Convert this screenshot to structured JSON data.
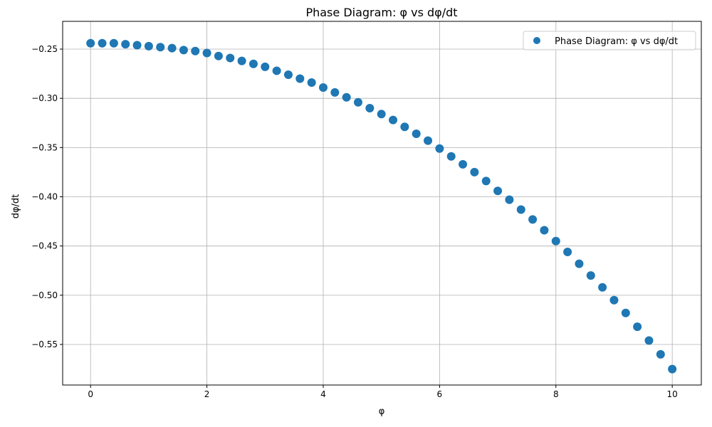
{
  "chart_data": {
    "type": "scatter",
    "title": "Phase Diagram: φ vs dφ/dt",
    "x_label": "φ",
    "y_label": "dφ/dt",
    "grid": true,
    "legend_position": "upper right",
    "xlim": [
      -0.48,
      10.5
    ],
    "ylim": [
      -0.5912,
      -0.2218
    ],
    "xticks": [
      0,
      2,
      4,
      6,
      8,
      10
    ],
    "yticks": [
      {
        "value": -0.25,
        "label": "−0.25"
      },
      {
        "value": -0.3,
        "label": "−0.30"
      },
      {
        "value": -0.35,
        "label": "−0.35"
      },
      {
        "value": -0.4,
        "label": "−0.40"
      },
      {
        "value": -0.45,
        "label": "−0.45"
      },
      {
        "value": -0.5,
        "label": "−0.50"
      },
      {
        "value": -0.55,
        "label": "−0.55"
      }
    ],
    "series": [
      {
        "name": "Phase Diagram: φ vs dφ/dt",
        "color": "#1f77b4",
        "x": [
          0,
          0.2,
          0.4,
          0.6,
          0.8,
          1.0,
          1.2,
          1.4,
          1.6,
          1.8,
          2.0,
          2.2,
          2.4,
          2.6,
          2.8,
          3.0,
          3.2,
          3.4,
          3.6,
          3.8,
          4.0,
          4.2,
          4.4,
          4.6,
          4.8,
          5.0,
          5.2,
          5.4,
          5.6,
          5.8,
          6.0,
          6.2,
          6.4,
          6.6,
          6.8,
          7.0,
          7.2,
          7.4,
          7.6,
          7.8,
          8.0,
          8.2,
          8.4,
          8.6,
          8.8,
          9.0,
          9.2,
          9.4,
          9.6,
          9.8,
          10
        ],
        "values": [
          -0.244,
          -0.244,
          -0.244,
          -0.245,
          -0.246,
          -0.247,
          -0.248,
          -0.249,
          -0.251,
          -0.252,
          -0.254,
          -0.257,
          -0.259,
          -0.262,
          -0.265,
          -0.268,
          -0.272,
          -0.276,
          -0.28,
          -0.284,
          -0.289,
          -0.294,
          -0.299,
          -0.304,
          -0.31,
          -0.316,
          -0.322,
          -0.329,
          -0.336,
          -0.343,
          -0.351,
          -0.359,
          -0.367,
          -0.375,
          -0.384,
          -0.394,
          -0.403,
          -0.413,
          -0.423,
          -0.434,
          -0.445,
          -0.456,
          -0.468,
          -0.48,
          -0.492,
          -0.505,
          -0.518,
          -0.532,
          -0.546,
          -0.56,
          -0.575
        ]
      }
    ]
  }
}
